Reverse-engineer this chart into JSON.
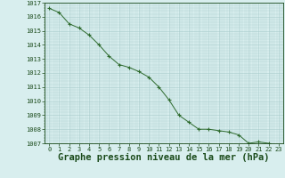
{
  "x": [
    0,
    1,
    2,
    3,
    4,
    5,
    6,
    7,
    8,
    9,
    10,
    11,
    12,
    13,
    14,
    15,
    16,
    17,
    18,
    19,
    20,
    21,
    22,
    23
  ],
  "y": [
    1016.6,
    1016.3,
    1015.5,
    1015.2,
    1014.7,
    1014.0,
    1013.2,
    1012.6,
    1012.4,
    1012.1,
    1011.7,
    1011.0,
    1010.1,
    1009.0,
    1008.5,
    1008.0,
    1008.0,
    1007.9,
    1007.8,
    1007.6,
    1007.0,
    1007.1,
    1007.0,
    1006.7
  ],
  "line_color": "#2d6a2d",
  "marker_color": "#2d6a2d",
  "bg_color": "#d8eeee",
  "grid_color": "#aacccc",
  "xlabel": "Graphe pression niveau de la mer (hPa)",
  "xlabel_color": "#1a4a1a",
  "tick_color": "#1a4a1a",
  "ylim": [
    1007,
    1017
  ],
  "xlim_min": -0.5,
  "xlim_max": 23.5,
  "yticks": [
    1007,
    1008,
    1009,
    1010,
    1011,
    1012,
    1013,
    1014,
    1015,
    1016,
    1017
  ],
  "xticks": [
    0,
    1,
    2,
    3,
    4,
    5,
    6,
    7,
    8,
    9,
    10,
    11,
    12,
    13,
    14,
    15,
    16,
    17,
    18,
    19,
    20,
    21,
    22,
    23
  ],
  "tick_fontsize": 5.0,
  "xlabel_fontsize": 7.5
}
